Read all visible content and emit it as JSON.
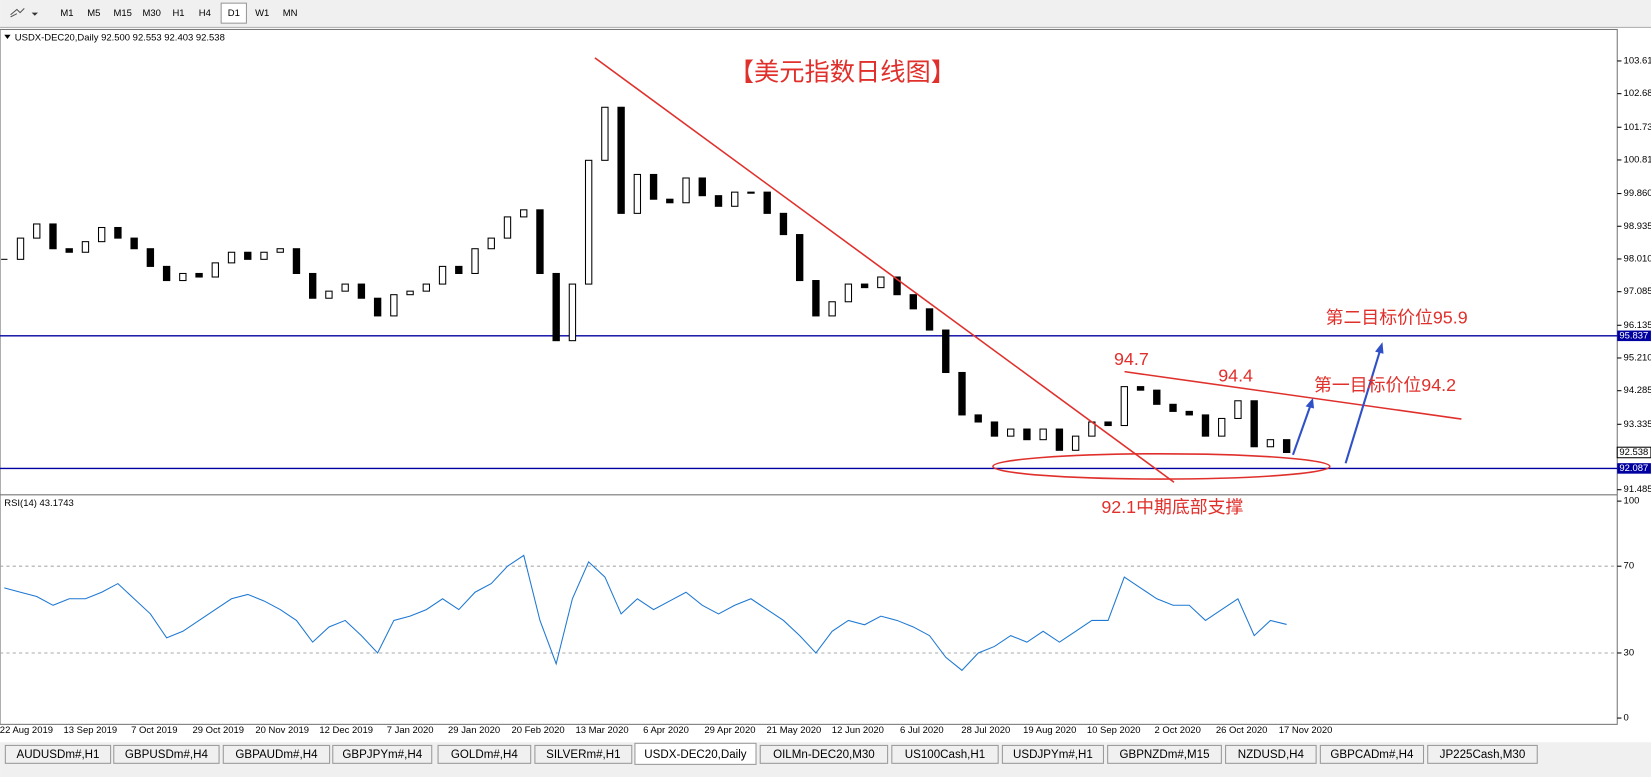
{
  "toolbar": {
    "buttons": [
      "M1",
      "M5",
      "M15",
      "M30",
      "H1",
      "H4",
      "D1",
      "W1",
      "MN"
    ]
  },
  "chart_data": {
    "type": "candlestick",
    "title": "【美元指数日线图】",
    "header": "USDX-DEC20,Daily  92.500 92.553 92.403 92.538",
    "close": [
      98.0,
      98.6,
      99.0,
      98.3,
      98.2,
      98.5,
      98.9,
      98.6,
      98.3,
      97.8,
      97.4,
      97.6,
      97.5,
      97.9,
      98.2,
      98.0,
      98.2,
      98.3,
      97.6,
      96.9,
      97.1,
      97.3,
      96.9,
      96.4,
      97.0,
      97.1,
      97.3,
      97.8,
      97.6,
      98.3,
      98.6,
      99.2,
      99.4,
      97.6,
      95.7,
      97.3,
      100.8,
      102.3,
      99.3,
      100.4,
      99.7,
      99.6,
      100.3,
      99.8,
      99.5,
      99.9,
      99.9,
      99.3,
      98.7,
      97.4,
      96.4,
      96.8,
      97.3,
      97.2,
      97.5,
      97.0,
      96.6,
      96.0,
      94.8,
      93.6,
      93.4,
      93.0,
      93.2,
      92.9,
      93.2,
      92.6,
      93.0,
      93.4,
      93.3,
      94.4,
      94.3,
      93.9,
      93.7,
      93.6,
      93.0,
      93.5,
      94.0,
      92.7,
      92.9,
      92.538
    ],
    "color": "#000000",
    "date_labels": [
      "22 Aug 2019",
      "13 Sep 2019",
      "7 Oct 2019",
      "29 Oct 2019",
      "20 Nov 2019",
      "12 Dec 2019",
      "7 Jan 2020",
      "29 Jan 2020",
      "20 Feb 2020",
      "13 Mar 2020",
      "6 Apr 2020",
      "29 Apr 2020",
      "21 May 2020",
      "12 Jun 2020",
      "6 Jul 2020",
      "28 Jul 2020",
      "19 Aug 2020",
      "10 Sep 2020",
      "2 Oct 2020",
      "26 Oct 2020",
      "17 Nov 2020"
    ],
    "ylim": [
      91.34,
      104.5
    ],
    "yticks": [
      103.61,
      102.685,
      101.735,
      {
        "value": 100.81,
        "label": "100.810"
      },
      {
        "value": 99.86,
        "label": "99.860"
      },
      98.935,
      {
        "value": 98.01,
        "label": "98.010"
      },
      97.085,
      96.135,
      {
        "value": 95.21,
        "label": "95.210"
      },
      94.285,
      93.335,
      91.485
    ],
    "levels": [
      {
        "value": 95.837,
        "color": "#0000a0"
      },
      {
        "value": 92.087,
        "color": "#0000a0"
      }
    ],
    "current_price": 92.538,
    "annotations": [
      "94.7",
      "94.4",
      "第一目标价位94.2",
      "第二目标价位95.9",
      "92.1中期底部支撑"
    ]
  },
  "rsi": {
    "type": "line",
    "header": "RSI(14) 43.1743",
    "color": "#1e78d2",
    "values": [
      60,
      58,
      56,
      52,
      55,
      55,
      58,
      62,
      55,
      48,
      37,
      40,
      45,
      50,
      55,
      57,
      54,
      50,
      45,
      35,
      42,
      45,
      38,
      30,
      45,
      47,
      50,
      55,
      50,
      58,
      62,
      70,
      75,
      45,
      25,
      55,
      72,
      65,
      48,
      55,
      50,
      54,
      58,
      52,
      48,
      52,
      55,
      50,
      45,
      38,
      30,
      40,
      45,
      43,
      47,
      45,
      42,
      38,
      28,
      22,
      30,
      33,
      38,
      35,
      40,
      35,
      40,
      45,
      45,
      65,
      60,
      55,
      52,
      52,
      45,
      50,
      55,
      38,
      45,
      43.1743
    ],
    "ylim": [
      -2.9,
      102.9
    ],
    "yticks": [
      100,
      70,
      30,
      0
    ],
    "grid": [
      70,
      30
    ]
  },
  "tabs": [
    "AUDUSDm#,H1",
    "GBPUSDm#,H4",
    "GBPAUDm#,H4",
    "GBPJPYm#,H4",
    "GOLDm#,H4",
    "SILVERm#,H1",
    "USDX-DEC20,Daily",
    "OILMn-DEC20,M30",
    "US100Cash,H1",
    "USDJPYm#,H1",
    "GBPNZDm#,M15",
    "NZDUSD,H4",
    "GBPCADm#,H4",
    "JP225Cash,M30"
  ]
}
